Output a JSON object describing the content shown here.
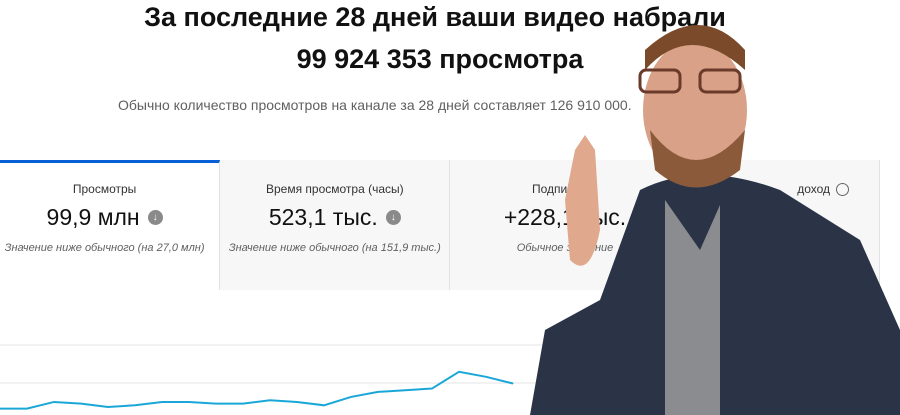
{
  "header": {
    "title_line1": "За последние 28 дней ваши видео набрали",
    "title_line2": "99 924 353 просмотра",
    "subtitle": "Обычно количество просмотров на канале за 28 дней составляет 126 910 000."
  },
  "cards": [
    {
      "label": "Просмотры",
      "value": "99,9 млн",
      "trend_icon": "arrow-down-circle",
      "note": "Значение ниже обычного (на 27,0 млн)"
    },
    {
      "label": "Время просмотра (часы)",
      "value": "523,1 тыс.",
      "trend_icon": "arrow-down-circle",
      "note": "Значение ниже обычного (на 151,9 тыс.)"
    },
    {
      "label": "Подписчики",
      "value": "+228,1 тыс.",
      "note": "Обычное значение"
    },
    {
      "label": "доход",
      "icon": "clock-icon"
    }
  ],
  "colors": {
    "accent": "#065fd4",
    "line": "#1aa7d8"
  },
  "chart_data": {
    "type": "line",
    "grid": true,
    "series": [
      {
        "values": [
          2,
          2,
          6,
          5,
          3,
          4,
          6,
          6,
          5,
          5,
          7,
          6,
          4,
          9,
          12,
          13,
          14,
          24,
          21,
          17
        ]
      }
    ],
    "ylim": [
      0,
      40
    ]
  }
}
